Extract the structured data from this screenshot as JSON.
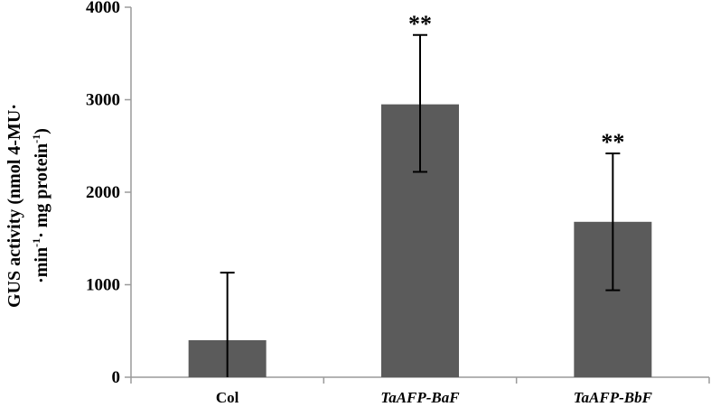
{
  "chart_data": {
    "type": "bar",
    "categories": [
      "Col",
      "TaAFP-BaF",
      "TaAFP-BbF"
    ],
    "category_italic": [
      false,
      true,
      true
    ],
    "values": [
      400,
      2950,
      1680
    ],
    "error_plus": [
      730,
      750,
      740
    ],
    "error_minus": [
      400,
      730,
      740
    ],
    "annotations": [
      "",
      "**",
      "**"
    ],
    "ylabel_line1": "GUS activity (nmol 4-MU·",
    "ylabel_line2_a": "·min",
    "ylabel_line2_sup1": "-1",
    "ylabel_line2_b": "· mg protein",
    "ylabel_line2_sup2": "-1",
    "ylabel_line2_c": ")",
    "ylim": [
      0,
      4000
    ],
    "yticks": [
      "0",
      "1000",
      "2000",
      "3000",
      "4000"
    ],
    "bar_color": "#5b5b5b",
    "grid": false
  }
}
